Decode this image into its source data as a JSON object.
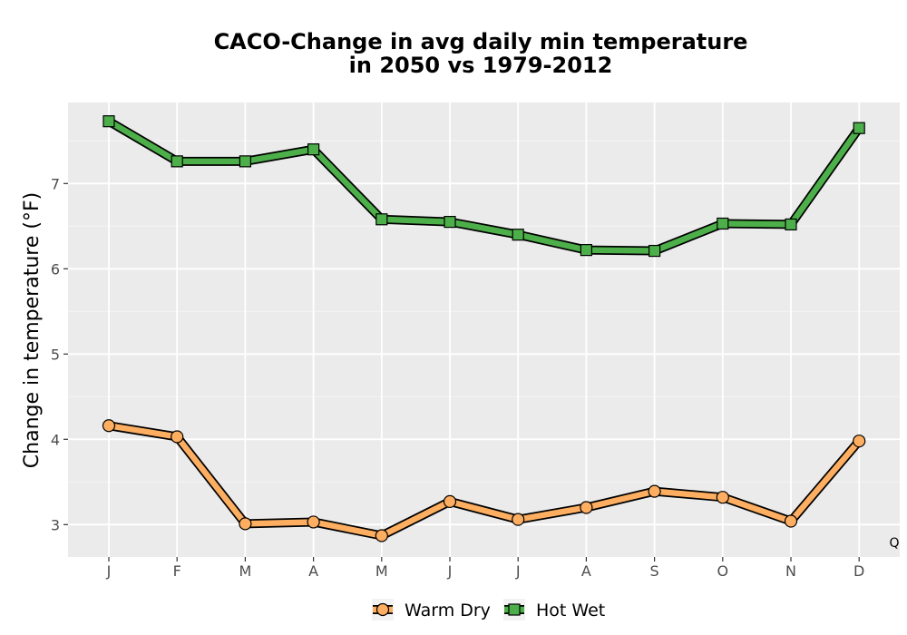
{
  "chart_data": {
    "type": "line",
    "title_lines": [
      "CACO-Change in avg daily min temperature",
      "in 2050 vs 1979-2012"
    ],
    "xlabel": "",
    "ylabel": "Change in temperature (°F)",
    "categories": [
      "J",
      "F",
      "M",
      "A",
      "M",
      "J",
      "J",
      "A",
      "S",
      "O",
      "N",
      "D"
    ],
    "ylim": [
      2.62,
      7.95
    ],
    "yticks": [
      3,
      4,
      5,
      6,
      7
    ],
    "grid": true,
    "legend_position": "bottom",
    "series": [
      {
        "name": "Warm Dry",
        "color": "#fdae61",
        "marker": "circle",
        "values": [
          4.16,
          4.03,
          3.01,
          3.03,
          2.87,
          3.27,
          3.06,
          3.2,
          3.39,
          3.32,
          3.04,
          3.98
        ]
      },
      {
        "name": "Hot Wet",
        "color": "#4daf4a",
        "marker": "square",
        "values": [
          7.73,
          7.26,
          7.26,
          7.4,
          6.58,
          6.55,
          6.4,
          6.22,
          6.21,
          6.53,
          6.52,
          7.65
        ]
      }
    ],
    "annotation": "Q"
  }
}
